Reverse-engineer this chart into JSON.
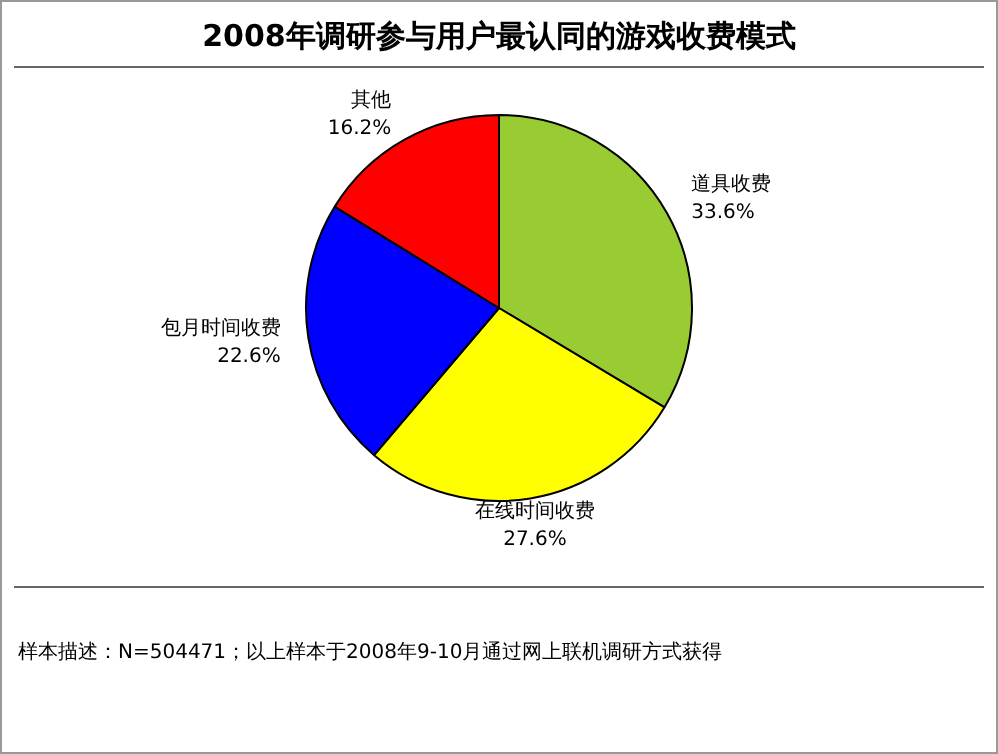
{
  "chart_data": {
    "type": "pie",
    "title": "2008年调研参与用户最认同的游戏收费模式",
    "categories": [
      "道具收费",
      "在线时间收费",
      "包月时间收费",
      "其他"
    ],
    "values": [
      33.6,
      27.6,
      22.6,
      16.2
    ],
    "value_labels": [
      "33.6%",
      "27.6%",
      "22.6%",
      "16.2%"
    ],
    "colors": [
      "#99cc33",
      "#ffff00",
      "#0000ff",
      "#ff0000"
    ],
    "annotations": [
      "样本描述：N=504471；以上样本于2008年9-10月通过网上联机调研方式获得"
    ]
  }
}
